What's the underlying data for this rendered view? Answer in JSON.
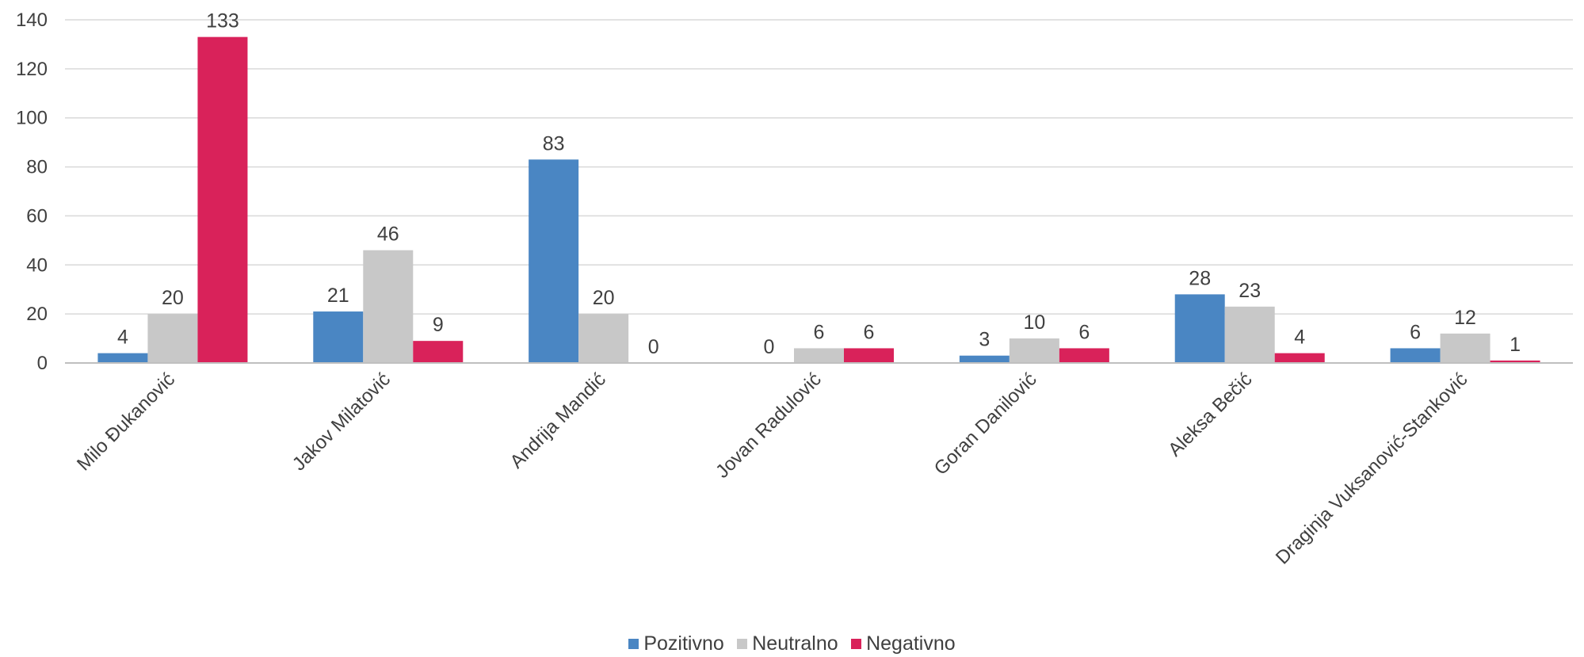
{
  "chart_data": {
    "type": "bar",
    "title": "",
    "xlabel": "",
    "ylabel": "",
    "ylim": [
      0,
      140
    ],
    "yticks": [
      "0",
      "20",
      "40",
      "60",
      "80",
      "100",
      "120",
      "140"
    ],
    "grid": true,
    "legend_position": "bottom",
    "categories": [
      "Milo Đukanović",
      "Jakov Milatović",
      "Andrija Mandić",
      "Jovan Radulović",
      "Goran Danilović",
      "Aleksa Bečić",
      "Draginja Vuksanović-Stanković"
    ],
    "series": [
      {
        "name": "Pozitivno",
        "color": "#4A86C3",
        "values": [
          4,
          21,
          83,
          0,
          3,
          28,
          6
        ],
        "labels": [
          "4",
          "21",
          "83",
          "0",
          "3",
          "28",
          "6"
        ]
      },
      {
        "name": "Neutralno",
        "color": "#C8C8C8",
        "values": [
          20,
          46,
          20,
          6,
          10,
          23,
          12
        ],
        "labels": [
          "20",
          "46",
          "20",
          "6",
          "10",
          "23",
          "12"
        ]
      },
      {
        "name": "Negativno",
        "color": "#D9225A",
        "values": [
          133,
          9,
          0,
          6,
          6,
          4,
          1
        ],
        "labels": [
          "133",
          "9",
          "0",
          "6",
          "6",
          "4",
          "1"
        ]
      }
    ]
  }
}
